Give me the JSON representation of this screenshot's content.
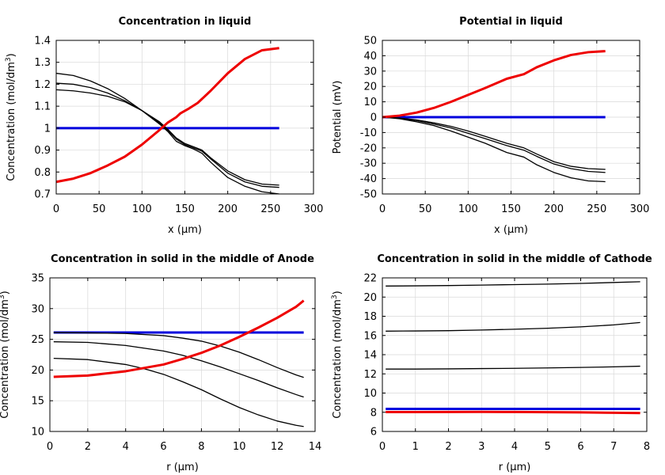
{
  "chart_data": [
    {
      "type": "line",
      "title": "Concentration in liquid",
      "xlabel": "x (µm)",
      "ylabel": "Concentration (mol/dm³)",
      "ylabel_base": "Concentration (mol/dm",
      "ylabel_sup": "3",
      "ylabel_tail": ")",
      "xlim": [
        0,
        300
      ],
      "ylim": [
        0.7,
        1.4
      ],
      "xticks": [
        "0",
        "50",
        "100",
        "150",
        "200",
        "250",
        "300"
      ],
      "yticks": [
        "0.7",
        "0.8",
        "0.9",
        "1",
        "1.1",
        "1.2",
        "1.3",
        "1.4"
      ],
      "grid": true,
      "series": [
        {
          "name": "blue",
          "color": "#0000dd",
          "width": 3,
          "x": [
            0,
            260
          ],
          "y": [
            1.0,
            1.0
          ]
        },
        {
          "name": "black-1",
          "color": "#000000",
          "width": 1.3,
          "x": [
            0,
            20,
            40,
            60,
            80,
            100,
            120,
            130,
            140,
            150,
            160,
            170,
            180,
            200,
            220,
            240,
            260
          ],
          "y": [
            1.25,
            1.24,
            1.215,
            1.18,
            1.135,
            1.08,
            1.02,
            0.985,
            0.94,
            0.92,
            0.905,
            0.885,
            0.845,
            0.775,
            0.735,
            0.71,
            0.7
          ]
        },
        {
          "name": "black-2",
          "color": "#000000",
          "width": 1.3,
          "x": [
            0,
            20,
            40,
            60,
            80,
            100,
            120,
            130,
            140,
            150,
            160,
            170,
            180,
            200,
            220,
            240,
            260
          ],
          "y": [
            1.205,
            1.2,
            1.185,
            1.16,
            1.125,
            1.08,
            1.025,
            0.99,
            0.95,
            0.925,
            0.91,
            0.895,
            0.86,
            0.795,
            0.755,
            0.735,
            0.73
          ]
        },
        {
          "name": "black-3",
          "color": "#000000",
          "width": 1.3,
          "x": [
            0,
            20,
            40,
            60,
            80,
            100,
            120,
            130,
            140,
            150,
            160,
            170,
            180,
            200,
            220,
            240,
            260
          ],
          "y": [
            1.175,
            1.17,
            1.16,
            1.145,
            1.12,
            1.08,
            1.03,
            0.995,
            0.955,
            0.93,
            0.915,
            0.9,
            0.865,
            0.805,
            0.765,
            0.745,
            0.74
          ]
        },
        {
          "name": "red",
          "color": "#ee0000",
          "width": 3,
          "x": [
            0,
            20,
            40,
            60,
            80,
            100,
            120,
            130,
            140,
            145,
            155,
            165,
            180,
            200,
            220,
            240,
            260
          ],
          "y": [
            0.755,
            0.77,
            0.795,
            0.83,
            0.87,
            0.925,
            0.99,
            1.025,
            1.05,
            1.068,
            1.09,
            1.115,
            1.17,
            1.25,
            1.315,
            1.355,
            1.365
          ]
        }
      ]
    },
    {
      "type": "line",
      "title": "Potential in liquid",
      "xlabel": "x (µm)",
      "ylabel": "Potential (mV)",
      "ylabel_base": "Potential (mV)",
      "ylabel_sup": "",
      "ylabel_tail": "",
      "xlim": [
        0,
        300
      ],
      "ylim": [
        -50,
        50
      ],
      "xticks": [
        "0",
        "50",
        "100",
        "150",
        "200",
        "250",
        "300"
      ],
      "yticks": [
        "-50",
        "-40",
        "-30",
        "-20",
        "-10",
        "0",
        "10",
        "20",
        "30",
        "40",
        "50"
      ],
      "grid": true,
      "series": [
        {
          "name": "blue",
          "color": "#0000dd",
          "width": 3,
          "x": [
            0,
            260
          ],
          "y": [
            0,
            0
          ]
        },
        {
          "name": "black-1",
          "color": "#000000",
          "width": 1.3,
          "x": [
            0,
            20,
            40,
            60,
            80,
            100,
            120,
            145,
            165,
            180,
            200,
            220,
            240,
            260
          ],
          "y": [
            0,
            -1,
            -3,
            -5.5,
            -9,
            -13,
            -17,
            -23,
            -26,
            -31,
            -36,
            -39.5,
            -41.5,
            -42
          ]
        },
        {
          "name": "black-2",
          "color": "#000000",
          "width": 1.3,
          "x": [
            0,
            20,
            40,
            60,
            80,
            100,
            120,
            145,
            165,
            180,
            200,
            220,
            240,
            260
          ],
          "y": [
            0,
            -0.7,
            -2.2,
            -4.5,
            -7,
            -10.5,
            -14,
            -18.5,
            -21.5,
            -25.5,
            -30.5,
            -33.5,
            -35.3,
            -36
          ]
        },
        {
          "name": "black-3",
          "color": "#000000",
          "width": 1.3,
          "x": [
            0,
            20,
            40,
            60,
            80,
            100,
            120,
            145,
            165,
            180,
            200,
            220,
            240,
            260
          ],
          "y": [
            0,
            -0.5,
            -1.8,
            -3.7,
            -6,
            -9,
            -12.5,
            -17,
            -20,
            -24,
            -29,
            -32,
            -33.5,
            -34
          ]
        },
        {
          "name": "red",
          "color": "#ee0000",
          "width": 3,
          "x": [
            0,
            20,
            40,
            60,
            80,
            100,
            120,
            145,
            165,
            180,
            200,
            220,
            240,
            260
          ],
          "y": [
            0,
            1,
            3,
            6,
            10,
            14.5,
            19,
            25,
            28,
            32.5,
            37,
            40.5,
            42.3,
            43
          ]
        }
      ]
    },
    {
      "type": "line",
      "title": "Concentration in solid in the middle of Anode",
      "xlabel": "r (µm)",
      "ylabel": "Concentration (mol/dm³)",
      "ylabel_base": "Concentration (mol/dm",
      "ylabel_sup": "3",
      "ylabel_tail": ")",
      "xlim": [
        0,
        14
      ],
      "ylim": [
        10,
        35
      ],
      "xticks": [
        "0",
        "2",
        "4",
        "6",
        "8",
        "10",
        "12",
        "14"
      ],
      "yticks": [
        "10",
        "15",
        "20",
        "25",
        "30",
        "35"
      ],
      "grid": true,
      "series": [
        {
          "name": "blue",
          "color": "#0000dd",
          "width": 3,
          "x": [
            0.2,
            13.4
          ],
          "y": [
            26.1,
            26.1
          ]
        },
        {
          "name": "black-1",
          "color": "#000000",
          "width": 1.3,
          "x": [
            0.2,
            2,
            4,
            6,
            7,
            8,
            9,
            10,
            11,
            12,
            13,
            13.4
          ],
          "y": [
            26.1,
            26.05,
            25.95,
            25.6,
            25.2,
            24.7,
            23.9,
            22.9,
            21.7,
            20.4,
            19.2,
            18.8
          ]
        },
        {
          "name": "black-2",
          "color": "#000000",
          "width": 1.3,
          "x": [
            0.2,
            2,
            4,
            6,
            7,
            8,
            9,
            10,
            11,
            12,
            13,
            13.4
          ],
          "y": [
            24.6,
            24.5,
            24.0,
            23.1,
            22.4,
            21.5,
            20.5,
            19.4,
            18.3,
            17.1,
            16.0,
            15.6
          ]
        },
        {
          "name": "black-3",
          "color": "#000000",
          "width": 1.3,
          "x": [
            0.2,
            2,
            4,
            5,
            6,
            7,
            8,
            9,
            10,
            11,
            12,
            13,
            13.4
          ],
          "y": [
            21.9,
            21.7,
            20.9,
            20.2,
            19.3,
            18.1,
            16.8,
            15.3,
            13.9,
            12.7,
            11.7,
            11.0,
            10.8
          ]
        },
        {
          "name": "red",
          "color": "#ee0000",
          "width": 3,
          "x": [
            0.2,
            2,
            4,
            6,
            7,
            8,
            9,
            10,
            11,
            12,
            13,
            13.4
          ],
          "y": [
            18.9,
            19.1,
            19.8,
            20.9,
            21.8,
            22.8,
            24.0,
            25.4,
            26.9,
            28.5,
            30.3,
            31.3
          ]
        }
      ]
    },
    {
      "type": "line",
      "title": "Concentration in solid in the middle of Cathode",
      "xlabel": "r (µm)",
      "ylabel": "Concentration (mol/dm³)",
      "ylabel_base": "Concentration (mol/dm",
      "ylabel_sup": "3",
      "ylabel_tail": ")",
      "xlim": [
        0,
        8
      ],
      "ylim": [
        6,
        22
      ],
      "xticks": [
        "0",
        "1",
        "2",
        "3",
        "4",
        "5",
        "6",
        "7",
        "8"
      ],
      "yticks": [
        "6",
        "8",
        "10",
        "12",
        "14",
        "16",
        "18",
        "20",
        "22"
      ],
      "grid": true,
      "series": [
        {
          "name": "black-1",
          "color": "#000000",
          "width": 1.3,
          "x": [
            0.1,
            1,
            2,
            3,
            4,
            5,
            6,
            7,
            7.8
          ],
          "y": [
            21.15,
            21.17,
            21.2,
            21.25,
            21.3,
            21.35,
            21.42,
            21.52,
            21.6
          ]
        },
        {
          "name": "black-2",
          "color": "#000000",
          "width": 1.3,
          "x": [
            0.1,
            1,
            2,
            3,
            4,
            5,
            6,
            7,
            7.8
          ],
          "y": [
            16.45,
            16.47,
            16.5,
            16.57,
            16.65,
            16.75,
            16.9,
            17.1,
            17.35
          ]
        },
        {
          "name": "black-3",
          "color": "#000000",
          "width": 1.3,
          "x": [
            0.1,
            1,
            2,
            3,
            4,
            5,
            6,
            7,
            7.8
          ],
          "y": [
            12.5,
            12.5,
            12.52,
            12.55,
            12.58,
            12.62,
            12.67,
            12.73,
            12.8
          ]
        },
        {
          "name": "blue",
          "color": "#0000dd",
          "width": 3,
          "x": [
            0.1,
            7.8
          ],
          "y": [
            8.35,
            8.35
          ]
        },
        {
          "name": "red",
          "color": "#ee0000",
          "width": 3,
          "x": [
            0.1,
            1,
            2,
            3,
            4,
            5,
            6,
            7,
            7.8
          ],
          "y": [
            8.02,
            8.02,
            8.03,
            8.04,
            8.03,
            8.01,
            7.99,
            7.95,
            7.92
          ]
        }
      ]
    }
  ]
}
